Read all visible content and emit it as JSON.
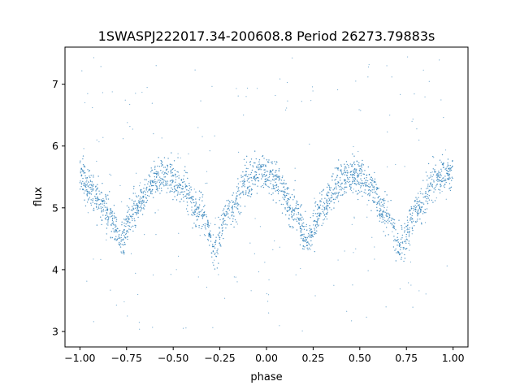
{
  "chart_data": {
    "type": "scatter",
    "title": "1SWASPJ222017.34-200608.8 Period 26273.79883s",
    "xlabel": "phase",
    "ylabel": "flux",
    "xlim": [
      -1.08,
      1.08
    ],
    "ylim": [
      2.75,
      7.6
    ],
    "xticks": [
      -1.0,
      -0.75,
      -0.5,
      -0.25,
      0.0,
      0.25,
      0.5,
      0.75,
      1.0
    ],
    "xtick_labels": [
      "−1.00",
      "−0.75",
      "−0.50",
      "−0.25",
      "0.00",
      "0.25",
      "0.50",
      "0.75",
      "1.00"
    ],
    "yticks": [
      3,
      4,
      5,
      6,
      7
    ],
    "ytick_labels": [
      "3",
      "4",
      "5",
      "6",
      "7"
    ],
    "grid": false,
    "marker_color": "#1f77b4",
    "series": [
      {
        "phase_range": [
          -1.0,
          1.0
        ],
        "points": [
          {
            "phase": -1.0,
            "flux": 5.55
          },
          {
            "phase": -0.95,
            "flux": 5.3
          },
          {
            "phase": -0.85,
            "flux": 4.9
          },
          {
            "phase": -0.78,
            "flux": 4.5
          },
          {
            "phase": -0.7,
            "flux": 5.0
          },
          {
            "phase": -0.6,
            "flux": 5.45
          },
          {
            "phase": -0.53,
            "flux": 5.55
          },
          {
            "phase": -0.45,
            "flux": 5.35
          },
          {
            "phase": -0.35,
            "flux": 4.9
          },
          {
            "phase": -0.28,
            "flux": 4.35
          },
          {
            "phase": -0.2,
            "flux": 4.95
          },
          {
            "phase": -0.1,
            "flux": 5.45
          },
          {
            "phase": -0.02,
            "flux": 5.6
          },
          {
            "phase": 0.05,
            "flux": 5.45
          },
          {
            "phase": 0.15,
            "flux": 4.95
          },
          {
            "phase": 0.22,
            "flux": 4.5
          },
          {
            "phase": 0.3,
            "flux": 5.0
          },
          {
            "phase": 0.4,
            "flux": 5.45
          },
          {
            "phase": 0.47,
            "flux": 5.55
          },
          {
            "phase": 0.55,
            "flux": 5.35
          },
          {
            "phase": 0.65,
            "flux": 4.9
          },
          {
            "phase": 0.72,
            "flux": 4.35
          },
          {
            "phase": 0.8,
            "flux": 4.95
          },
          {
            "phase": 0.9,
            "flux": 5.45
          },
          {
            "phase": 1.0,
            "flux": 5.6
          }
        ],
        "scatter_width": 0.42,
        "outlier_range": [
          3.0,
          7.45
        ]
      }
    ]
  }
}
